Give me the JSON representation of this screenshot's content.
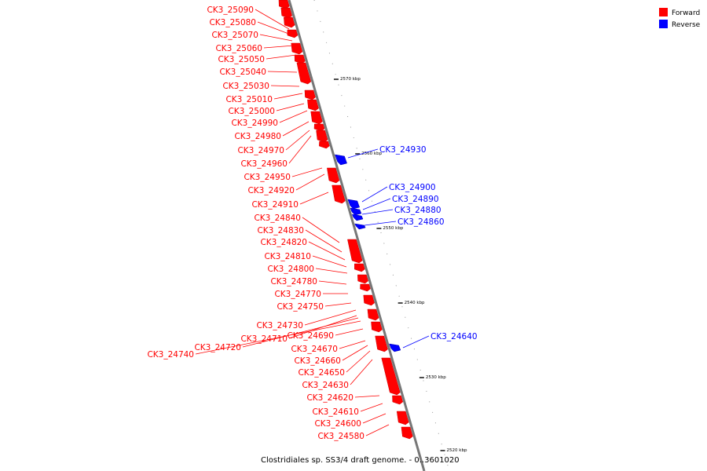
{
  "legend": {
    "forward_label": "Forward",
    "reverse_label": "Reverse",
    "forward_color": "#ff0000",
    "reverse_color": "#0000ff"
  },
  "caption": "Clostridiales sp. SS3/4 draft genome. - 0..3601020",
  "scale_ticks": [
    "2570 kbp",
    "2560 kbp",
    "2550 kbp",
    "2540 kbp",
    "2530 kbp",
    "2520 kbp"
  ],
  "forward_genes": [
    "CK3_25090",
    "CK3_25080",
    "CK3_25070",
    "CK3_25060",
    "CK3_25050",
    "CK3_25040",
    "CK3_25030",
    "CK3_25010",
    "CK3_25000",
    "CK3_24990",
    "CK3_24980",
    "CK3_24970",
    "CK3_24960",
    "CK3_24950",
    "CK3_24920",
    "CK3_24910",
    "CK3_24840",
    "CK3_24830",
    "CK3_24820",
    "CK3_24810",
    "CK3_24800",
    "CK3_24780",
    "CK3_24770",
    "CK3_24750",
    "CK3_24730",
    "CK3_24710",
    "CK3_24720",
    "CK3_24740",
    "CK3_24690",
    "CK3_24670",
    "CK3_24660",
    "CK3_24650",
    "CK3_24630",
    "CK3_24620",
    "CK3_24610",
    "CK3_24600",
    "CK3_24580"
  ],
  "reverse_genes": [
    "CK3_24930",
    "CK3_24900",
    "CK3_24890",
    "CK3_24880",
    "CK3_24860",
    "CK3_24640"
  ]
}
